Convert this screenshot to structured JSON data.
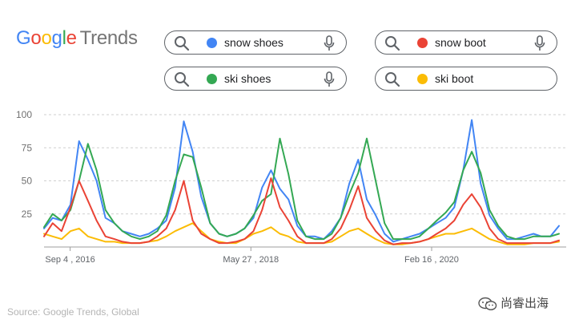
{
  "header": {
    "logo_text": "Google",
    "logo_suffix": "Trends",
    "logo_colors": [
      "#4285F4",
      "#EA4335",
      "#FBBC05",
      "#4285F4",
      "#34A853",
      "#EA4335"
    ]
  },
  "search_terms": [
    {
      "label": "snow shoes",
      "color": "#4285F4"
    },
    {
      "label": "snow boot",
      "color": "#EA4335"
    },
    {
      "label": "ski shoes",
      "color": "#34A853"
    },
    {
      "label": "ski boot",
      "color": "#FBBC05"
    }
  ],
  "chart_data": {
    "type": "line",
    "title": "",
    "xlabel": "",
    "ylabel": "",
    "ylim": [
      0,
      100
    ],
    "y_ticks": [
      25,
      50,
      75,
      100
    ],
    "x_tick_labels": [
      "Sep 4 , 2016",
      "May 27 , 2018",
      "Feb 16 , 2020"
    ],
    "x_tick_dates": [
      "2016-09-04",
      "2018-05-27",
      "2020-02-16"
    ],
    "x_range": [
      "2016-06-05",
      "2021-05-30"
    ],
    "grid": true,
    "x": [
      "2016-06-05",
      "2016-07-05",
      "2016-08-05",
      "2016-09-05",
      "2016-10-05",
      "2016-11-05",
      "2016-12-05",
      "2017-01-05",
      "2017-02-05",
      "2017-03-05",
      "2017-04-05",
      "2017-05-05",
      "2017-06-05",
      "2017-07-05",
      "2017-08-05",
      "2017-09-05",
      "2017-10-05",
      "2017-11-05",
      "2017-12-05",
      "2018-01-05",
      "2018-02-05",
      "2018-03-05",
      "2018-04-05",
      "2018-05-05",
      "2018-06-05",
      "2018-07-05",
      "2018-08-05",
      "2018-09-05",
      "2018-10-05",
      "2018-11-05",
      "2018-12-05",
      "2019-01-05",
      "2019-02-05",
      "2019-03-05",
      "2019-04-05",
      "2019-05-05",
      "2019-06-05",
      "2019-07-05",
      "2019-08-05",
      "2019-09-05",
      "2019-10-05",
      "2019-11-05",
      "2019-12-05",
      "2020-01-05",
      "2020-02-05",
      "2020-03-05",
      "2020-04-05",
      "2020-05-05",
      "2020-06-05",
      "2020-07-05",
      "2020-08-05",
      "2020-09-05",
      "2020-10-05",
      "2020-11-05",
      "2020-12-05",
      "2021-01-05",
      "2021-02-05",
      "2021-03-05",
      "2021-04-05",
      "2021-05-05"
    ],
    "series": [
      {
        "name": "snow shoes",
        "color": "#4285F4",
        "values": [
          14,
          22,
          20,
          32,
          80,
          66,
          50,
          22,
          18,
          12,
          10,
          8,
          10,
          14,
          20,
          45,
          95,
          72,
          38,
          18,
          10,
          8,
          10,
          14,
          22,
          45,
          58,
          44,
          36,
          16,
          8,
          8,
          6,
          12,
          22,
          48,
          66,
          36,
          24,
          10,
          4,
          6,
          8,
          10,
          14,
          18,
          22,
          30,
          58,
          96,
          48,
          24,
          14,
          6,
          6,
          8,
          10,
          8,
          8,
          16
        ]
      },
      {
        "name": "snow boot",
        "color": "#EA4335",
        "values": [
          8,
          18,
          12,
          30,
          50,
          35,
          20,
          8,
          6,
          4,
          3,
          3,
          4,
          8,
          14,
          28,
          50,
          20,
          10,
          6,
          3,
          3,
          4,
          6,
          12,
          28,
          52,
          30,
          20,
          8,
          3,
          3,
          3,
          6,
          14,
          28,
          46,
          22,
          12,
          5,
          2,
          3,
          3,
          4,
          6,
          10,
          14,
          20,
          32,
          40,
          30,
          14,
          6,
          3,
          3,
          3,
          3,
          3,
          3,
          5
        ]
      },
      {
        "name": "ski shoes",
        "color": "#34A853",
        "values": [
          15,
          25,
          20,
          28,
          50,
          78,
          58,
          28,
          18,
          12,
          8,
          6,
          8,
          12,
          24,
          50,
          70,
          68,
          45,
          18,
          10,
          8,
          10,
          14,
          24,
          35,
          40,
          82,
          55,
          20,
          8,
          6,
          6,
          10,
          22,
          40,
          56,
          82,
          50,
          18,
          6,
          6,
          6,
          8,
          14,
          20,
          26,
          34,
          58,
          72,
          56,
          28,
          16,
          8,
          6,
          6,
          8,
          8,
          8,
          10
        ]
      },
      {
        "name": "ski boot",
        "color": "#FBBC05",
        "values": [
          10,
          8,
          6,
          12,
          14,
          8,
          6,
          4,
          4,
          3,
          3,
          3,
          4,
          5,
          8,
          12,
          15,
          18,
          12,
          6,
          4,
          3,
          3,
          6,
          10,
          12,
          15,
          10,
          8,
          4,
          3,
          3,
          3,
          4,
          8,
          12,
          14,
          10,
          6,
          3,
          2,
          2,
          3,
          4,
          6,
          8,
          10,
          10,
          12,
          14,
          10,
          6,
          4,
          2,
          2,
          2,
          3,
          3,
          3,
          4
        ]
      }
    ]
  },
  "source_text": "Source: Google Trends, Global",
  "watermark_text": "尚睿出海"
}
